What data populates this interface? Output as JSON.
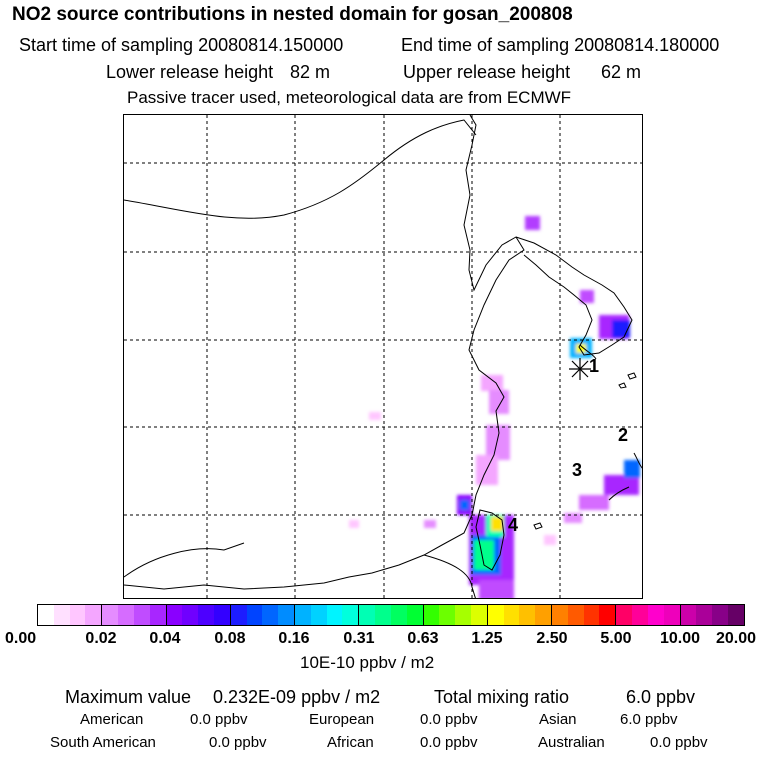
{
  "header": {
    "title": "NO2 source contributions in nested domain for gosan_200808",
    "start_label": "Start time of sampling 20080814.150000",
    "end_label": "End time of sampling 20080814.180000",
    "lower_label": "Lower release height",
    "lower_value": "82 m",
    "upper_label": "Upper release height",
    "upper_value": "62 m",
    "note": "Passive tracer used, meteorological data are from ECMWF"
  },
  "map": {
    "markers": [
      "1",
      "2",
      "3",
      "4"
    ]
  },
  "colorbar": {
    "ticks": [
      "0.00",
      "0.02",
      "0.04",
      "0.08",
      "0.16",
      "0.31",
      "0.63",
      "1.25",
      "2.50",
      "5.00",
      "10.00",
      "20.00"
    ],
    "unit": "10E-10 ppbv / m2",
    "colors": [
      "#ffffff",
      "#ffe0ff",
      "#ffc6ff",
      "#f4a6ff",
      "#e58cff",
      "#d66cff",
      "#c04cff",
      "#a826ff",
      "#8a00ff",
      "#7000ff",
      "#4d00ff",
      "#3300ff",
      "#1d1dff",
      "#0044ff",
      "#0066ff",
      "#008cff",
      "#00b2ff",
      "#00d2ff",
      "#00f4ff",
      "#00ffdd",
      "#00ffb4",
      "#00ff8c",
      "#00ff60",
      "#00ff33",
      "#33ff00",
      "#6cff00",
      "#a6ff00",
      "#dcff00",
      "#ffff00",
      "#ffe000",
      "#ffc000",
      "#ffa000",
      "#ff8000",
      "#ff5a00",
      "#ff3300",
      "#ff0000",
      "#ff0066",
      "#ff0099",
      "#ff00cc",
      "#ee00bb",
      "#cc00aa",
      "#aa0099",
      "#880088",
      "#660066"
    ]
  },
  "summary": {
    "max_label": "Maximum value",
    "max_value": "0.232E-09 ppbv / m2",
    "total_label": "Total mixing ratio",
    "total_value": "6.0 ppbv",
    "regions": [
      {
        "name": "American",
        "value": "0.0 ppbv"
      },
      {
        "name": "European",
        "value": "0.0 ppbv"
      },
      {
        "name": "Asian",
        "value": "6.0 ppbv"
      },
      {
        "name": "South American",
        "value": "0.0 ppbv"
      },
      {
        "name": "African",
        "value": "0.0 ppbv"
      },
      {
        "name": "Australian",
        "value": "0.0 ppbv"
      }
    ]
  }
}
